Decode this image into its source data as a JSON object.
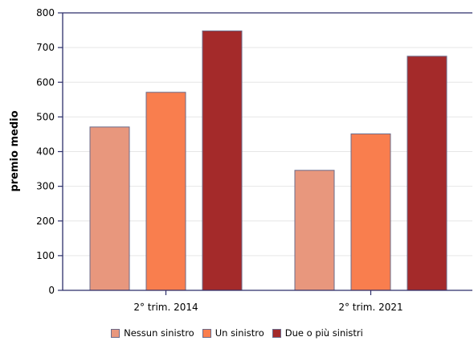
{
  "chart_data": {
    "type": "bar",
    "title": "",
    "xlabel": "",
    "ylabel": "premio medio",
    "ylim": [
      0,
      800
    ],
    "yticks": [
      0,
      100,
      200,
      300,
      400,
      500,
      600,
      700,
      800
    ],
    "grid": true,
    "legend_position": "bottom",
    "categories": [
      "2° trim. 2014",
      "2° trim. 2021"
    ],
    "series": [
      {
        "name": "Nessun sinistro",
        "color": "#e8977d",
        "values": [
          471,
          346
        ]
      },
      {
        "name": "Un sinistro",
        "color": "#f97e4e",
        "values": [
          571,
          451
        ]
      },
      {
        "name": "Due o più sinistri",
        "color": "#a42a2a",
        "values": [
          748,
          675
        ]
      }
    ]
  }
}
